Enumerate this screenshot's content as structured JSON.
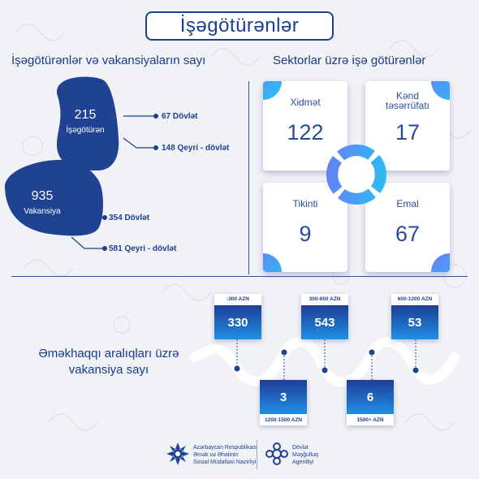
{
  "header": {
    "title": "İşəgötürənlər"
  },
  "left": {
    "title": "İşəgötürənlər və vakansiyaların sayı",
    "employers": {
      "total": "215",
      "label": "İşəgötürən",
      "state": "67 Dövlət",
      "nonstate": "148 Qeyri - dövlət"
    },
    "vacancies": {
      "total": "935",
      "label": "Vakansiya",
      "state": "354 Dövlət",
      "nonstate": "581 Qeyri - dövlət"
    }
  },
  "sectors": {
    "title": "Sektorlar üzrə işə götürənlər",
    "items": [
      {
        "name": "Xidmət",
        "value": "122"
      },
      {
        "name": "Kənd\ntəsərrüfatı",
        "value": "17"
      },
      {
        "name": "Tikinti",
        "value": "9"
      },
      {
        "name": "Emal",
        "value": "67"
      }
    ]
  },
  "salary": {
    "title": "Əməkhaqqı aralıqları üzrə vakansiya sayı",
    "ranges": [
      {
        "range": "-300 AZN",
        "value": "330"
      },
      {
        "range": "300-600 AZN",
        "value": "543"
      },
      {
        "range": "600-1200 AZN",
        "value": "53"
      },
      {
        "range": "1200-1500 AZN",
        "value": "3"
      },
      {
        "range": "1500+ AZN",
        "value": "6"
      }
    ]
  },
  "footer": {
    "ministry": "Azərbaycan Respublikası\nƏmək və Əhalinin\nSosial Müdafiəsi Nazirliyi",
    "agency": "Dövlət\nMəşğulluq\nAgentliyi"
  },
  "colors": {
    "primary": "#1b3f8f",
    "accent_gradient_start": "#6a7bf5",
    "accent_gradient_end": "#27c2f3",
    "background": "#f1f2f6"
  }
}
